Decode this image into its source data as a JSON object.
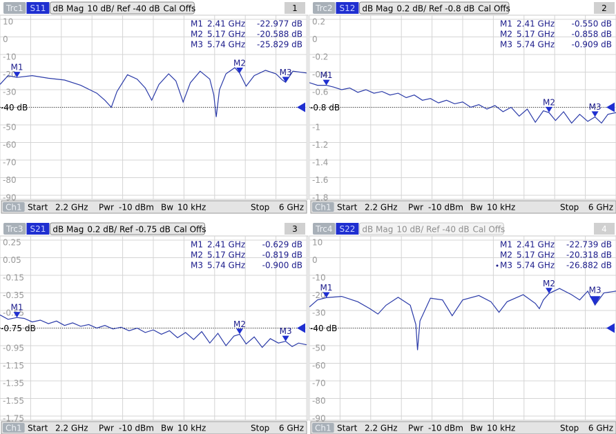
{
  "chart_data": [
    {
      "type": "line",
      "header": {
        "trace": "Trc1",
        "param": "S11",
        "format": "dB Mag",
        "scale": "10 dB/ Ref -40 dB",
        "cal": "Cal Offs",
        "number": "1"
      },
      "footer": {
        "channel": "Ch1",
        "start": "Start",
        "start_value": "2.2 GHz",
        "power": "Pwr",
        "power_value": "-10 dBm",
        "bw": "Bw",
        "bw_value": "10 kHz",
        "stop": "Stop",
        "stop_value": "6 GHz"
      },
      "xlim": [
        2.2,
        6
      ],
      "xticks": [
        2.2,
        2.58,
        2.96,
        3.34,
        3.72,
        4.1,
        4.48,
        4.86,
        5.24,
        5.62,
        6
      ],
      "ylim": [
        -90,
        10
      ],
      "yticks": [
        10,
        0,
        -10,
        -20,
        -30,
        -40,
        -50,
        -60,
        -70,
        -80,
        -90
      ],
      "ref": {
        "value": -40,
        "label": "-40 dB"
      },
      "color": "#2a3aa8",
      "grid": true,
      "x": [
        2.2,
        2.3,
        2.41,
        2.6,
        2.8,
        3.0,
        3.2,
        3.4,
        3.5,
        3.58,
        3.65,
        3.78,
        3.9,
        4.0,
        4.08,
        4.17,
        4.29,
        4.38,
        4.47,
        4.56,
        4.68,
        4.8,
        4.85,
        4.88,
        4.92,
        5.0,
        5.11,
        5.17,
        5.25,
        5.35,
        5.49,
        5.62,
        5.7,
        5.74,
        5.83,
        6.0
      ],
      "values": [
        -27,
        -22,
        -23,
        -22,
        -23.5,
        -24.5,
        -27.5,
        -32,
        -36,
        -40,
        -31,
        -21.5,
        -24,
        -29,
        -36,
        -27,
        -21,
        -25,
        -37,
        -26,
        -19.5,
        -24,
        -33,
        -45.5,
        -30,
        -21,
        -17.5,
        -20.6,
        -28,
        -22,
        -19,
        -21,
        -24.5,
        -25.8,
        -19.5,
        -20.5
      ],
      "markers": {
        "names": [
          "M1",
          "M2",
          "M3"
        ],
        "x": [
          2.41,
          5.17,
          5.74
        ],
        "x_labels": [
          "2.41 GHz",
          "5.17 GHz",
          "5.74 GHz"
        ],
        "values": [
          -22.977,
          -20.588,
          -25.829
        ],
        "value_labels": [
          "-22.977 dB",
          "-20.588 dB",
          "-25.829 dB"
        ]
      },
      "active": true
    },
    {
      "type": "line",
      "header": {
        "trace": "Trc2",
        "param": "S12",
        "format": "dB Mag",
        "scale": "0.2 dB/ Ref -0.8 dB",
        "cal": "Cal Offs",
        "number": "2"
      },
      "footer": {
        "channel": "Ch1",
        "start": "Start",
        "start_value": "2.2 GHz",
        "power": "Pwr",
        "power_value": "-10 dBm",
        "bw": "Bw",
        "bw_value": "10 kHz",
        "stop": "Stop",
        "stop_value": "6 GHz"
      },
      "xlim": [
        2.2,
        6
      ],
      "xticks": [
        2.2,
        2.58,
        2.96,
        3.34,
        3.72,
        4.1,
        4.48,
        4.86,
        5.24,
        5.62,
        6
      ],
      "ylim": [
        -1.8,
        0.2
      ],
      "yticks": [
        0.2,
        0,
        -0.2,
        -0.4,
        -0.6,
        -0.8,
        -1,
        -1.2,
        -1.4,
        -1.6,
        -1.8
      ],
      "ref": {
        "value": -0.8,
        "label": "-0.8 dB"
      },
      "color": "#2a3aa8",
      "grid": true,
      "x": [
        2.2,
        2.3,
        2.41,
        2.5,
        2.6,
        2.7,
        2.8,
        2.9,
        3.0,
        3.1,
        3.2,
        3.3,
        3.4,
        3.5,
        3.6,
        3.7,
        3.8,
        3.9,
        4.0,
        4.1,
        4.2,
        4.3,
        4.4,
        4.5,
        4.6,
        4.7,
        4.8,
        4.9,
        5.0,
        5.1,
        5.17,
        5.25,
        5.35,
        5.45,
        5.55,
        5.65,
        5.74,
        5.82,
        5.9,
        6.0
      ],
      "values": [
        -0.52,
        -0.55,
        -0.55,
        -0.57,
        -0.6,
        -0.58,
        -0.63,
        -0.6,
        -0.64,
        -0.62,
        -0.66,
        -0.64,
        -0.69,
        -0.66,
        -0.72,
        -0.7,
        -0.75,
        -0.72,
        -0.76,
        -0.74,
        -0.8,
        -0.77,
        -0.82,
        -0.78,
        -0.85,
        -0.8,
        -0.9,
        -0.82,
        -0.97,
        -0.84,
        -0.86,
        -0.95,
        -0.85,
        -0.98,
        -0.88,
        -0.96,
        -0.91,
        -0.98,
        -0.88,
        -0.86
      ],
      "markers": {
        "names": [
          "M1",
          "M2",
          "M3"
        ],
        "x": [
          2.41,
          5.17,
          5.74
        ],
        "x_labels": [
          "2.41 GHz",
          "5.17 GHz",
          "5.74 GHz"
        ],
        "values": [
          -0.55,
          -0.858,
          -0.909
        ],
        "value_labels": [
          "-0.550 dB",
          "-0.858 dB",
          "-0.909 dB"
        ]
      },
      "active": true
    },
    {
      "type": "line",
      "header": {
        "trace": "Trc3",
        "param": "S21",
        "format": "dB Mag",
        "scale": "0.2 dB/ Ref -0.75 dB",
        "cal": "Cal Offs",
        "number": "3"
      },
      "footer": {
        "channel": "Ch1",
        "start": "Start",
        "start_value": "2.2 GHz",
        "power": "Pwr",
        "power_value": "-10 dBm",
        "bw": "Bw",
        "bw_value": "10 kHz",
        "stop": "Stop",
        "stop_value": "6 GHz"
      },
      "xlim": [
        2.2,
        6
      ],
      "xticks": [
        2.2,
        2.58,
        2.96,
        3.34,
        3.72,
        4.1,
        4.48,
        4.86,
        5.24,
        5.62,
        6
      ],
      "ylim": [
        -1.75,
        0.25
      ],
      "yticks": [
        0.25,
        0.05,
        -0.15,
        -0.35,
        -0.55,
        -0.75,
        -0.95,
        -1.15,
        -1.35,
        -1.55,
        -1.75
      ],
      "ref": {
        "value": -0.75,
        "label": "-0.75 dB"
      },
      "color": "#2a3aa8",
      "grid": true,
      "x": [
        2.2,
        2.3,
        2.41,
        2.5,
        2.6,
        2.7,
        2.8,
        2.9,
        3.0,
        3.1,
        3.2,
        3.3,
        3.4,
        3.5,
        3.6,
        3.7,
        3.8,
        3.9,
        4.0,
        4.1,
        4.2,
        4.3,
        4.4,
        4.5,
        4.6,
        4.7,
        4.8,
        4.9,
        5.0,
        5.1,
        5.17,
        5.25,
        5.35,
        5.45,
        5.55,
        5.65,
        5.74,
        5.82,
        5.9,
        6.0
      ],
      "values": [
        -0.6,
        -0.65,
        -0.63,
        -0.64,
        -0.68,
        -0.66,
        -0.7,
        -0.67,
        -0.72,
        -0.69,
        -0.73,
        -0.71,
        -0.75,
        -0.72,
        -0.76,
        -0.74,
        -0.78,
        -0.75,
        -0.8,
        -0.77,
        -0.82,
        -0.78,
        -0.86,
        -0.8,
        -0.88,
        -0.79,
        -0.92,
        -0.81,
        -0.95,
        -0.84,
        -0.82,
        -0.93,
        -0.85,
        -0.97,
        -0.87,
        -0.92,
        -0.9,
        -0.96,
        -0.92,
        -0.94
      ],
      "markers": {
        "names": [
          "M1",
          "M2",
          "M3"
        ],
        "x": [
          2.41,
          5.17,
          5.74
        ],
        "x_labels": [
          "2.41 GHz",
          "5.17 GHz",
          "5.74 GHz"
        ],
        "values": [
          -0.629,
          -0.819,
          -0.9
        ],
        "value_labels": [
          "-0.629 dB",
          "-0.819 dB",
          "-0.900 dB"
        ]
      },
      "active": true
    },
    {
      "type": "line",
      "header": {
        "trace": "Trc4",
        "param": "S22",
        "format": "dB Mag",
        "scale": "10 dB/ Ref -40 dB",
        "cal": "Cal Offs",
        "number": "4"
      },
      "footer": {
        "channel": "Ch1",
        "start": "Start",
        "start_value": "2.2 GHz",
        "power": "Pwr",
        "power_value": "-10 dBm",
        "bw": "Bw",
        "bw_value": "10 kHz",
        "stop": "Stop",
        "stop_value": "6 GHz"
      },
      "xlim": [
        2.2,
        6
      ],
      "xticks": [
        2.2,
        2.58,
        2.96,
        3.34,
        3.72,
        4.1,
        4.48,
        4.86,
        5.24,
        5.62,
        6
      ],
      "ylim": [
        -90,
        10
      ],
      "yticks": [
        10,
        0,
        -10,
        -20,
        -30,
        -40,
        -50,
        -60,
        -70,
        -80,
        -90
      ],
      "ref": {
        "value": -40,
        "label": "-40 dB"
      },
      "color": "#2a3aa8",
      "grid": true,
      "x": [
        2.2,
        2.3,
        2.41,
        2.6,
        2.8,
        2.95,
        3.05,
        3.15,
        3.3,
        3.45,
        3.52,
        3.54,
        3.57,
        3.7,
        3.85,
        3.97,
        4.1,
        4.3,
        4.45,
        4.55,
        4.65,
        4.85,
        5.0,
        5.05,
        5.1,
        5.17,
        5.3,
        5.45,
        5.55,
        5.65,
        5.74,
        5.85,
        6.0
      ],
      "values": [
        -28,
        -24,
        -22.7,
        -22,
        -25,
        -29,
        -32,
        -27,
        -22.5,
        -27,
        -38,
        -52.5,
        -36,
        -23,
        -24,
        -33,
        -24,
        -21.5,
        -25,
        -31,
        -25,
        -21,
        -26,
        -29,
        -24,
        -20.3,
        -17.5,
        -21,
        -24,
        -19,
        -26.9,
        -20,
        -19
      ],
      "markers": {
        "names": [
          "M1",
          "M2",
          "M3"
        ],
        "x": [
          2.41,
          5.17,
          5.74
        ],
        "x_labels": [
          "2.41 GHz",
          "5.17 GHz",
          "5.74 GHz"
        ],
        "values": [
          -22.739,
          -20.318,
          -26.882
        ],
        "value_labels": [
          "-22.739 dB",
          "-20.318 dB",
          "-26.882 dB"
        ]
      },
      "active": false,
      "active_marker": 2
    }
  ]
}
